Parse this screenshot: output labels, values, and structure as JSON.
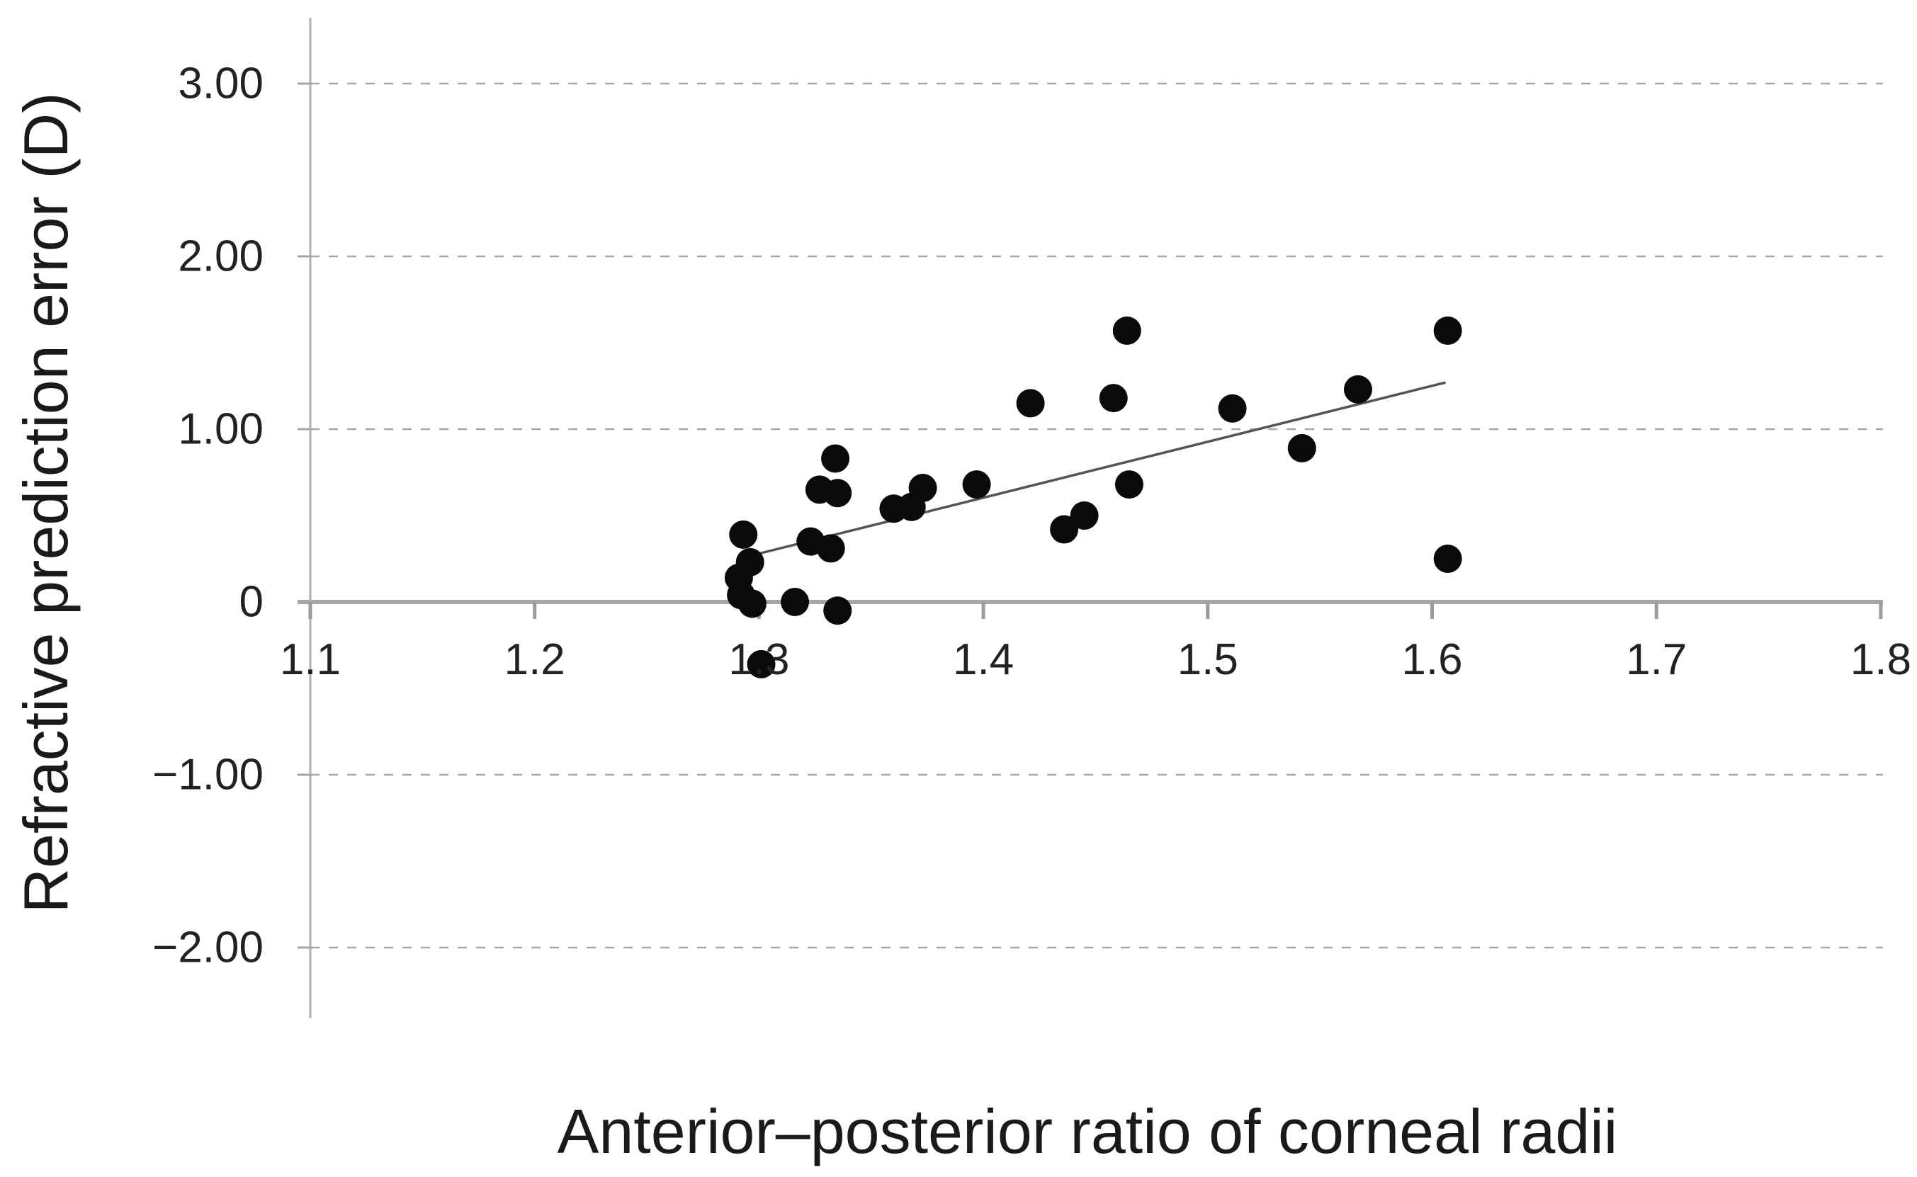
{
  "figure": {
    "background": "#ffffff"
  },
  "chart_data": {
    "type": "scatter",
    "title": "",
    "xlabel": "Anterior–posterior ratio of corneal radii",
    "ylabel": "Refractive prediction error (D)",
    "xlim": [
      1.1,
      1.8
    ],
    "ylim": [
      -2.4,
      3.3
    ],
    "x_ticks": {
      "values": [
        1.1,
        1.2,
        1.3,
        1.4,
        1.5,
        1.6,
        1.7,
        1.8
      ],
      "labels": [
        "1.1",
        "1.2",
        "1.3",
        "1.4",
        "1.5",
        "1.6",
        "1.7",
        "1.8"
      ]
    },
    "y_ticks": {
      "values": [
        3,
        2,
        1,
        0,
        -1,
        -2
      ],
      "labels": [
        "3.00",
        "2.00",
        "1.00",
        "0",
        "−1.00",
        "−2.00"
      ]
    },
    "grid": {
      "y_values": [
        3,
        2,
        1,
        -1,
        -2
      ],
      "style": "dashed",
      "color": "#a8a8a8"
    },
    "points": [
      [
        1.293,
        0.39
      ],
      [
        1.296,
        0.23
      ],
      [
        1.291,
        0.14
      ],
      [
        1.292,
        0.04
      ],
      [
        1.297,
        -0.01
      ],
      [
        1.301,
        -0.36
      ],
      [
        1.316,
        0.0
      ],
      [
        1.335,
        -0.05
      ],
      [
        1.323,
        0.35
      ],
      [
        1.332,
        0.31
      ],
      [
        1.327,
        0.65
      ],
      [
        1.335,
        0.63
      ],
      [
        1.334,
        0.83
      ],
      [
        1.36,
        0.54
      ],
      [
        1.368,
        0.55
      ],
      [
        1.373,
        0.66
      ],
      [
        1.397,
        0.68
      ],
      [
        1.421,
        1.15
      ],
      [
        1.436,
        0.42
      ],
      [
        1.445,
        0.5
      ],
      [
        1.458,
        1.18
      ],
      [
        1.464,
        1.57
      ],
      [
        1.465,
        0.68
      ],
      [
        1.511,
        1.12
      ],
      [
        1.542,
        0.89
      ],
      [
        1.567,
        1.23
      ],
      [
        1.607,
        1.57
      ],
      [
        1.607,
        0.25
      ]
    ],
    "trendline": {
      "x1": 1.3,
      "y1": 0.28,
      "x2": 1.606,
      "y2": 1.27,
      "color": "#545454"
    },
    "marker": {
      "shape": "circle",
      "color": "#0a0a0a",
      "radius_px": 20
    },
    "axis_color": "#a6a6a6",
    "legend": null
  }
}
